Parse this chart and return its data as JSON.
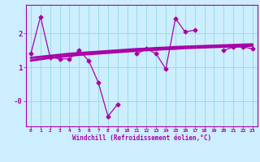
{
  "x_data": [
    0,
    1,
    2,
    3,
    4,
    5,
    6,
    7,
    8,
    9,
    10,
    11,
    12,
    13,
    14,
    15,
    16,
    17,
    18,
    19,
    20,
    21,
    22,
    23
  ],
  "y_line1": [
    1.4,
    2.5,
    1.3,
    1.25,
    1.25,
    1.5,
    1.2,
    0.55,
    -0.45,
    -0.1,
    null,
    1.4,
    1.55,
    1.4,
    0.95,
    2.45,
    2.05,
    2.1,
    null,
    null,
    1.5,
    1.6,
    1.6,
    1.55
  ],
  "y_trend1": [
    1.2,
    1.24,
    1.28,
    1.31,
    1.34,
    1.37,
    1.39,
    1.41,
    1.43,
    1.45,
    1.47,
    1.49,
    1.51,
    1.52,
    1.54,
    1.55,
    1.57,
    1.58,
    1.59,
    1.6,
    1.61,
    1.62,
    1.63,
    1.64
  ],
  "y_trend2": [
    1.28,
    1.31,
    1.34,
    1.37,
    1.4,
    1.42,
    1.44,
    1.46,
    1.48,
    1.5,
    1.52,
    1.54,
    1.55,
    1.57,
    1.58,
    1.6,
    1.61,
    1.62,
    1.63,
    1.64,
    1.65,
    1.66,
    1.67,
    1.68
  ],
  "bg_color": "#cceeff",
  "grid_color": "#99dddd",
  "line_color": "#aa00aa",
  "trend_color": "#aa00aa",
  "xlabel": "Windchill (Refroidissement éolien,°C)",
  "ytick_labels": [
    "-0",
    "1",
    "2"
  ],
  "ytick_vals": [
    0,
    1,
    2
  ],
  "xtick_labels": [
    "0",
    "1",
    "2",
    "3",
    "4",
    "5",
    "6",
    "7",
    "8",
    "9",
    "10",
    "11",
    "12",
    "13",
    "14",
    "15",
    "16",
    "17",
    "18",
    "19",
    "20",
    "21",
    "22",
    "23"
  ],
  "ylim": [
    -0.75,
    2.85
  ],
  "xlim": [
    -0.5,
    23.5
  ]
}
